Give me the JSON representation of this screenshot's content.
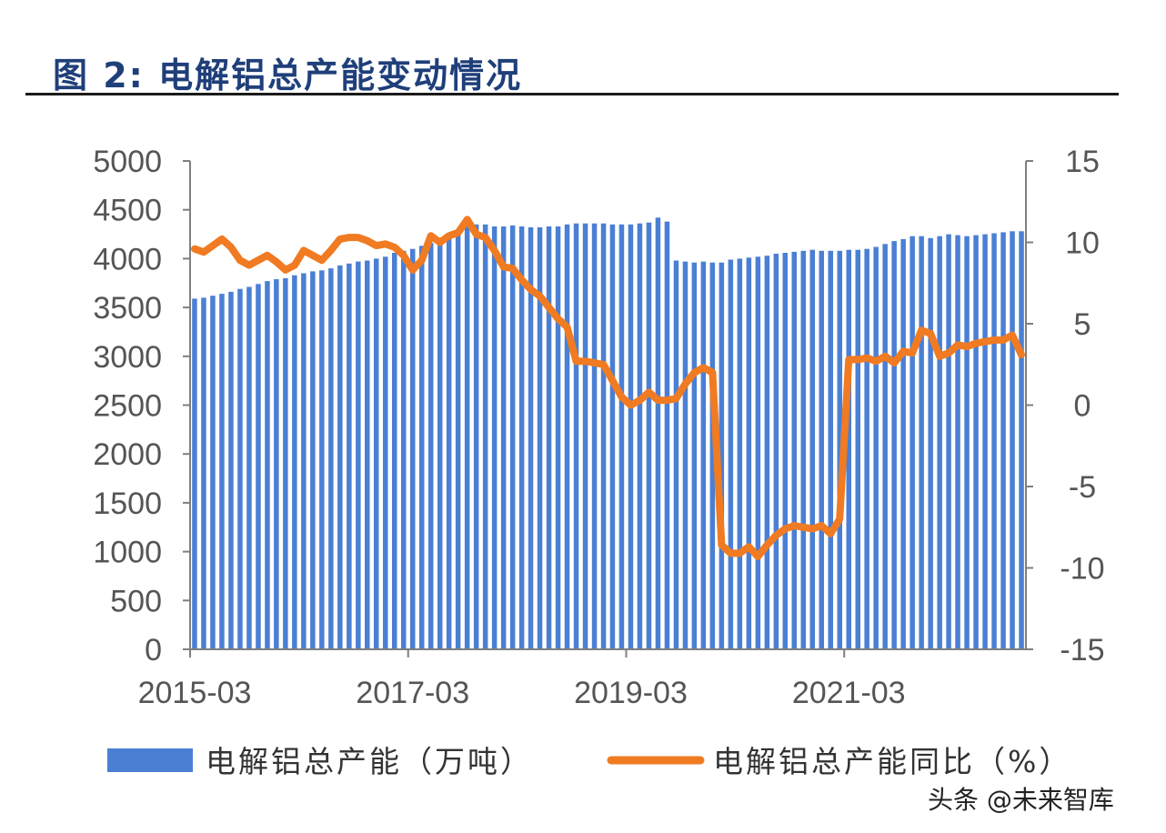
{
  "title": "图 2:  电解铝总产能变动情况",
  "watermark": "头条 @未来智库",
  "colors": {
    "bar": "#4a7fd4",
    "line": "#f07b22",
    "axis": "#7f7f7f",
    "title": "#1f3f7a"
  },
  "chart_data": {
    "type": "bar",
    "title": "图 2:  电解铝总产能变动情况",
    "x_start": "2015-03",
    "x_tick_labels": [
      "2015-03",
      "2017-03",
      "2019-03",
      "2021-03"
    ],
    "y_left_ticks": [
      "5000",
      "4500",
      "4000",
      "3500",
      "3000",
      "2500",
      "2000",
      "1500",
      "1000",
      "500",
      "0"
    ],
    "y_right_ticks": [
      "15",
      "10",
      "5",
      "0",
      "-5",
      "-10",
      "-15"
    ],
    "ylim_left": [
      0,
      5000
    ],
    "ylim_right": [
      -15,
      15
    ],
    "grid": false,
    "legend_position": "bottom",
    "series": [
      {
        "name": "电解铝总产能（万吨）",
        "type": "bar",
        "axis": "left",
        "values": [
          3590,
          3600,
          3620,
          3640,
          3660,
          3690,
          3710,
          3740,
          3770,
          3790,
          3800,
          3830,
          3850,
          3870,
          3880,
          3900,
          3930,
          3950,
          3970,
          3980,
          4000,
          4020,
          4060,
          4080,
          4100,
          4130,
          4160,
          4200,
          4230,
          4270,
          4340,
          4350,
          4350,
          4330,
          4330,
          4340,
          4330,
          4320,
          4320,
          4330,
          4330,
          4350,
          4360,
          4360,
          4360,
          4360,
          4350,
          4350,
          4350,
          4360,
          4370,
          4420,
          4380,
          3980,
          3970,
          3960,
          3970,
          3960,
          3960,
          3990,
          4000,
          4010,
          4020,
          4030,
          4050,
          4060,
          4070,
          4080,
          4090,
          4080,
          4080,
          4080,
          4090,
          4090,
          4100,
          4120,
          4150,
          4180,
          4200,
          4230,
          4230,
          4210,
          4230,
          4250,
          4240,
          4230,
          4240,
          4250,
          4260,
          4270,
          4280,
          4280
        ]
      },
      {
        "name": "电解铝总产能同比（%）",
        "type": "line",
        "axis": "right",
        "values": [
          9.6,
          9.4,
          9.8,
          10.2,
          9.7,
          8.9,
          8.6,
          8.9,
          9.2,
          8.8,
          8.3,
          8.6,
          9.5,
          9.2,
          8.9,
          9.5,
          10.2,
          10.3,
          10.3,
          10.1,
          9.8,
          9.9,
          9.7,
          9.2,
          8.3,
          8.9,
          10.4,
          10.0,
          10.4,
          10.6,
          11.4,
          10.5,
          10.3,
          9.5,
          8.5,
          8.4,
          7.7,
          7.1,
          6.7,
          6.0,
          5.3,
          4.8,
          2.7,
          2.7,
          2.6,
          2.5,
          1.5,
          0.5,
          0.0,
          0.3,
          0.8,
          0.3,
          0.3,
          0.4,
          1.3,
          2.0,
          2.3,
          2.0,
          -8.6,
          -9.1,
          -9.1,
          -8.7,
          -9.3,
          -8.6,
          -8.0,
          -7.6,
          -7.4,
          -7.5,
          -7.6,
          -7.4,
          -7.9,
          -7.0,
          2.8,
          2.8,
          2.9,
          2.7,
          3.0,
          2.6,
          3.3,
          3.2,
          4.6,
          4.4,
          3.0,
          3.2,
          3.7,
          3.6,
          3.8,
          3.9,
          4.0,
          4.0,
          4.3,
          3.1
        ]
      }
    ]
  },
  "legend": [
    {
      "label": "电解铝总产能（万吨）",
      "kind": "bar"
    },
    {
      "label": "电解铝总产能同比（%）",
      "kind": "line"
    }
  ]
}
